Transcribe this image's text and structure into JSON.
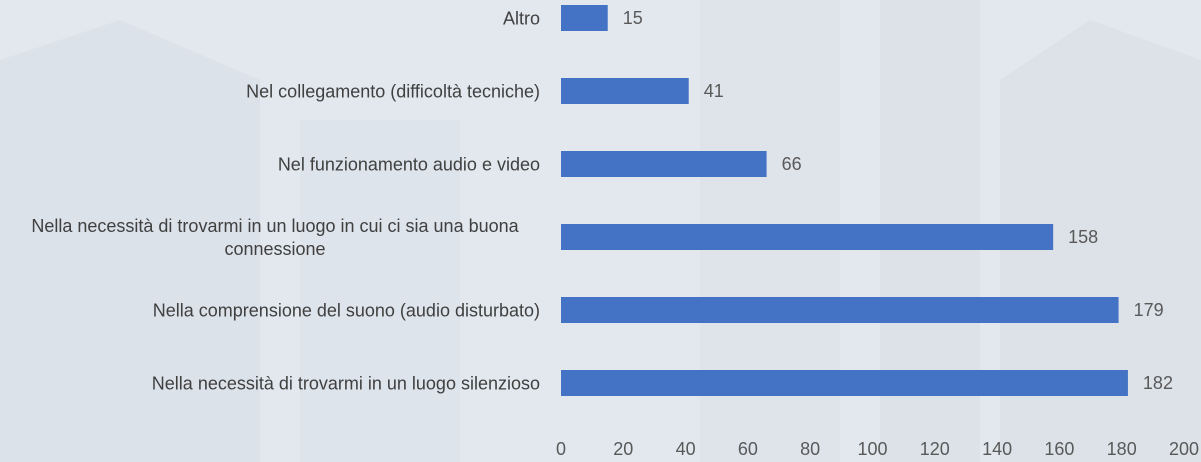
{
  "chart_data": {
    "type": "barh",
    "categories": [
      "Altro",
      "Nel collegamento (difficoltà tecniche)",
      "Nel funzionamento audio e video",
      "Nella necessità di trovarmi in un luogo in cui ci sia una buona connessione",
      "Nella comprensione del suono (audio disturbato)",
      "Nella necessità di trovarmi in un luogo silenzioso"
    ],
    "values": [
      15,
      41,
      66,
      158,
      179,
      182
    ],
    "color": "#4472c4",
    "xlim": [
      0,
      200
    ],
    "xticks": [
      0,
      20,
      40,
      60,
      80,
      100,
      120,
      140,
      160,
      180,
      200
    ],
    "grid": false
  }
}
